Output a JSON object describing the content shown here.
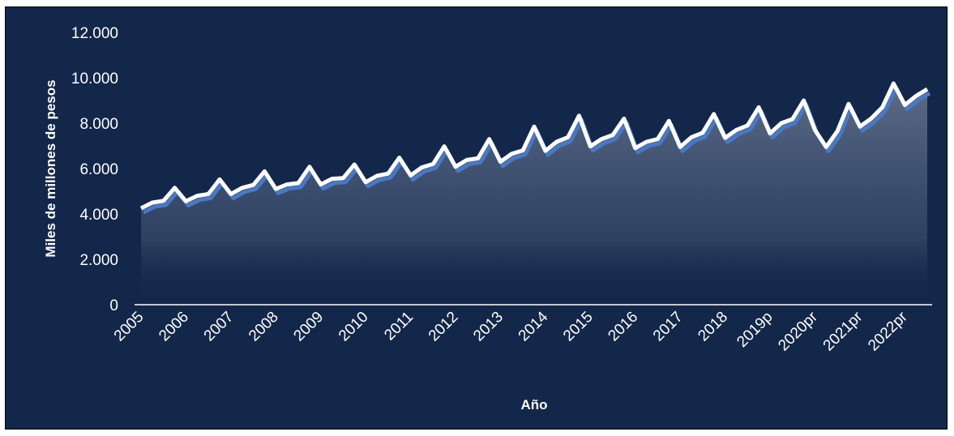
{
  "chart_data": {
    "type": "area",
    "xlabel": "Año",
    "ylabel": "Miles de millones de pesos",
    "ylim": [
      0,
      12000
    ],
    "yticks": [
      "0",
      "2.000",
      "4.000",
      "6.000",
      "8.000",
      "10.000",
      "12.000"
    ],
    "ytick_values": [
      0,
      2000,
      4000,
      6000,
      8000,
      10000,
      12000
    ],
    "year_labels": [
      "2005",
      "2006",
      "2007",
      "2008",
      "2009",
      "2010",
      "2011",
      "2012",
      "2013",
      "2014",
      "2015",
      "2016",
      "2017",
      "2018",
      "2019p",
      "2020pr",
      "2021pr",
      "2022pr"
    ],
    "series": [
      {
        "values": [
          4250,
          4500,
          4580,
          5150,
          4560,
          4800,
          4880,
          5520,
          4880,
          5150,
          5280,
          5880,
          5100,
          5300,
          5360,
          6080,
          5300,
          5550,
          5580,
          6180,
          5400,
          5680,
          5780,
          6480,
          5700,
          6050,
          6200,
          6980,
          6080,
          6380,
          6450,
          7300,
          6300,
          6650,
          6800,
          7850,
          6780,
          7180,
          7380,
          8330,
          6980,
          7300,
          7480,
          8200,
          6900,
          7180,
          7300,
          8100,
          6950,
          7380,
          7580,
          8400,
          7350,
          7700,
          7900,
          8700,
          7550,
          8000,
          8180,
          9000,
          7700,
          6950,
          7650,
          8850,
          7850,
          8200,
          8700,
          9750,
          8800,
          9200,
          9500
        ]
      }
    ],
    "colors": {
      "background": "#13274a",
      "line": "#ffffff",
      "shadow": "#4a78c2",
      "fill_top": "#dfe6f3",
      "text": "#ffffff"
    },
    "grid": false
  }
}
